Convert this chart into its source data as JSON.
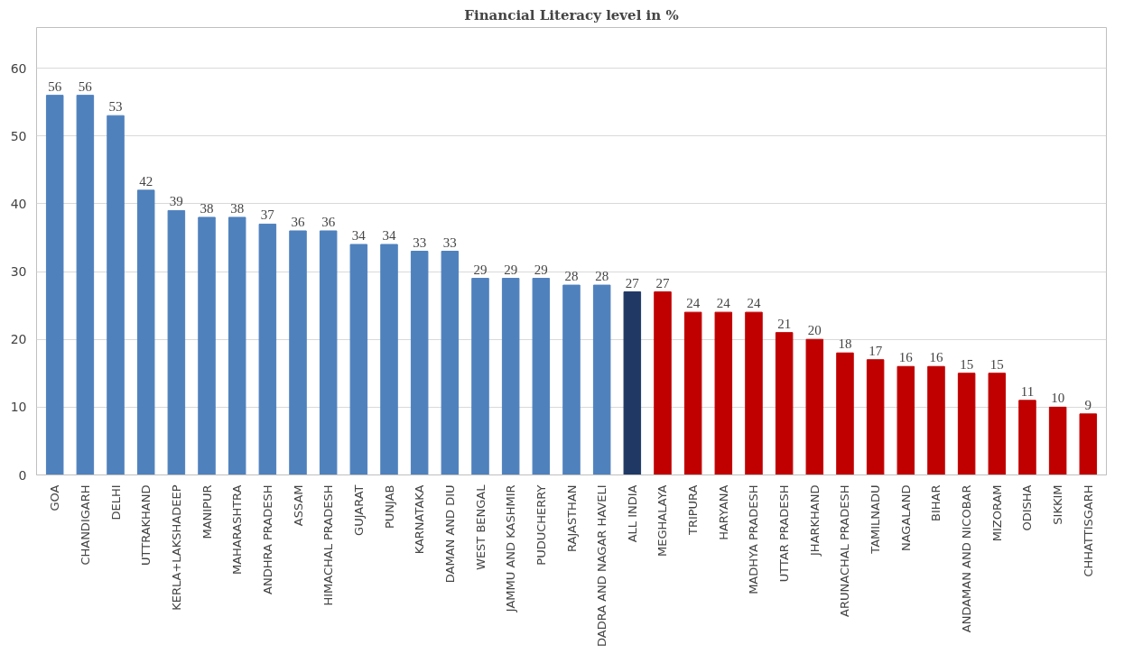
{
  "chart_data": {
    "type": "bar",
    "title": "Financial Literacy level in %",
    "categories": [
      "GOA",
      "CHANDIGARH",
      "DELHI",
      "UTTRAKHAND",
      "KERLA+LAKSHADEEP",
      "MANIPUR",
      "MAHARASHTRA",
      "ANDHRA PRADESH",
      "ASSAM",
      "HIMACHAL PRADESH",
      "GUJARAT",
      "PUNJAB",
      "KARNATAKA",
      "DAMAN AND DIU",
      "WEST BENGAL",
      "JAMMU AND KASHMIR",
      "PUDUCHERRY",
      "RAJASTHAN",
      "DADRA AND NAGAR HAVELI",
      "ALL INDIA",
      "MEGHALAYA",
      "TRIPURA",
      "HARYANA",
      "MADHYA PRADESH",
      "UTTAR PRADESH",
      "JHARKHAND",
      "ARUNACHAL PRADESH",
      "TAMILNADU",
      "NAGALAND",
      "BIHAR",
      "ANDAMAN AND NICOBAR",
      "MIZORAM",
      "ODISHA",
      "SIKKIM",
      "CHHATTISGARH"
    ],
    "values": [
      56,
      56,
      53,
      42,
      39,
      38,
      38,
      37,
      36,
      36,
      34,
      34,
      33,
      33,
      29,
      29,
      29,
      28,
      28,
      27,
      27,
      24,
      24,
      24,
      21,
      20,
      18,
      17,
      16,
      16,
      15,
      15,
      11,
      10,
      9
    ],
    "colors": [
      "#4f81bd",
      "#4f81bd",
      "#4f81bd",
      "#4f81bd",
      "#4f81bd",
      "#4f81bd",
      "#4f81bd",
      "#4f81bd",
      "#4f81bd",
      "#4f81bd",
      "#4f81bd",
      "#4f81bd",
      "#4f81bd",
      "#4f81bd",
      "#4f81bd",
      "#4f81bd",
      "#4f81bd",
      "#4f81bd",
      "#4f81bd",
      "#1f3864",
      "#c00000",
      "#c00000",
      "#c00000",
      "#c00000",
      "#c00000",
      "#c00000",
      "#c00000",
      "#c00000",
      "#c00000",
      "#c00000",
      "#c00000",
      "#c00000",
      "#c00000",
      "#c00000",
      "#c00000"
    ],
    "ylim": [
      0,
      66
    ],
    "yticks": [
      0,
      10,
      20,
      30,
      40,
      50,
      60
    ],
    "grid": "y",
    "data_labels": true
  }
}
